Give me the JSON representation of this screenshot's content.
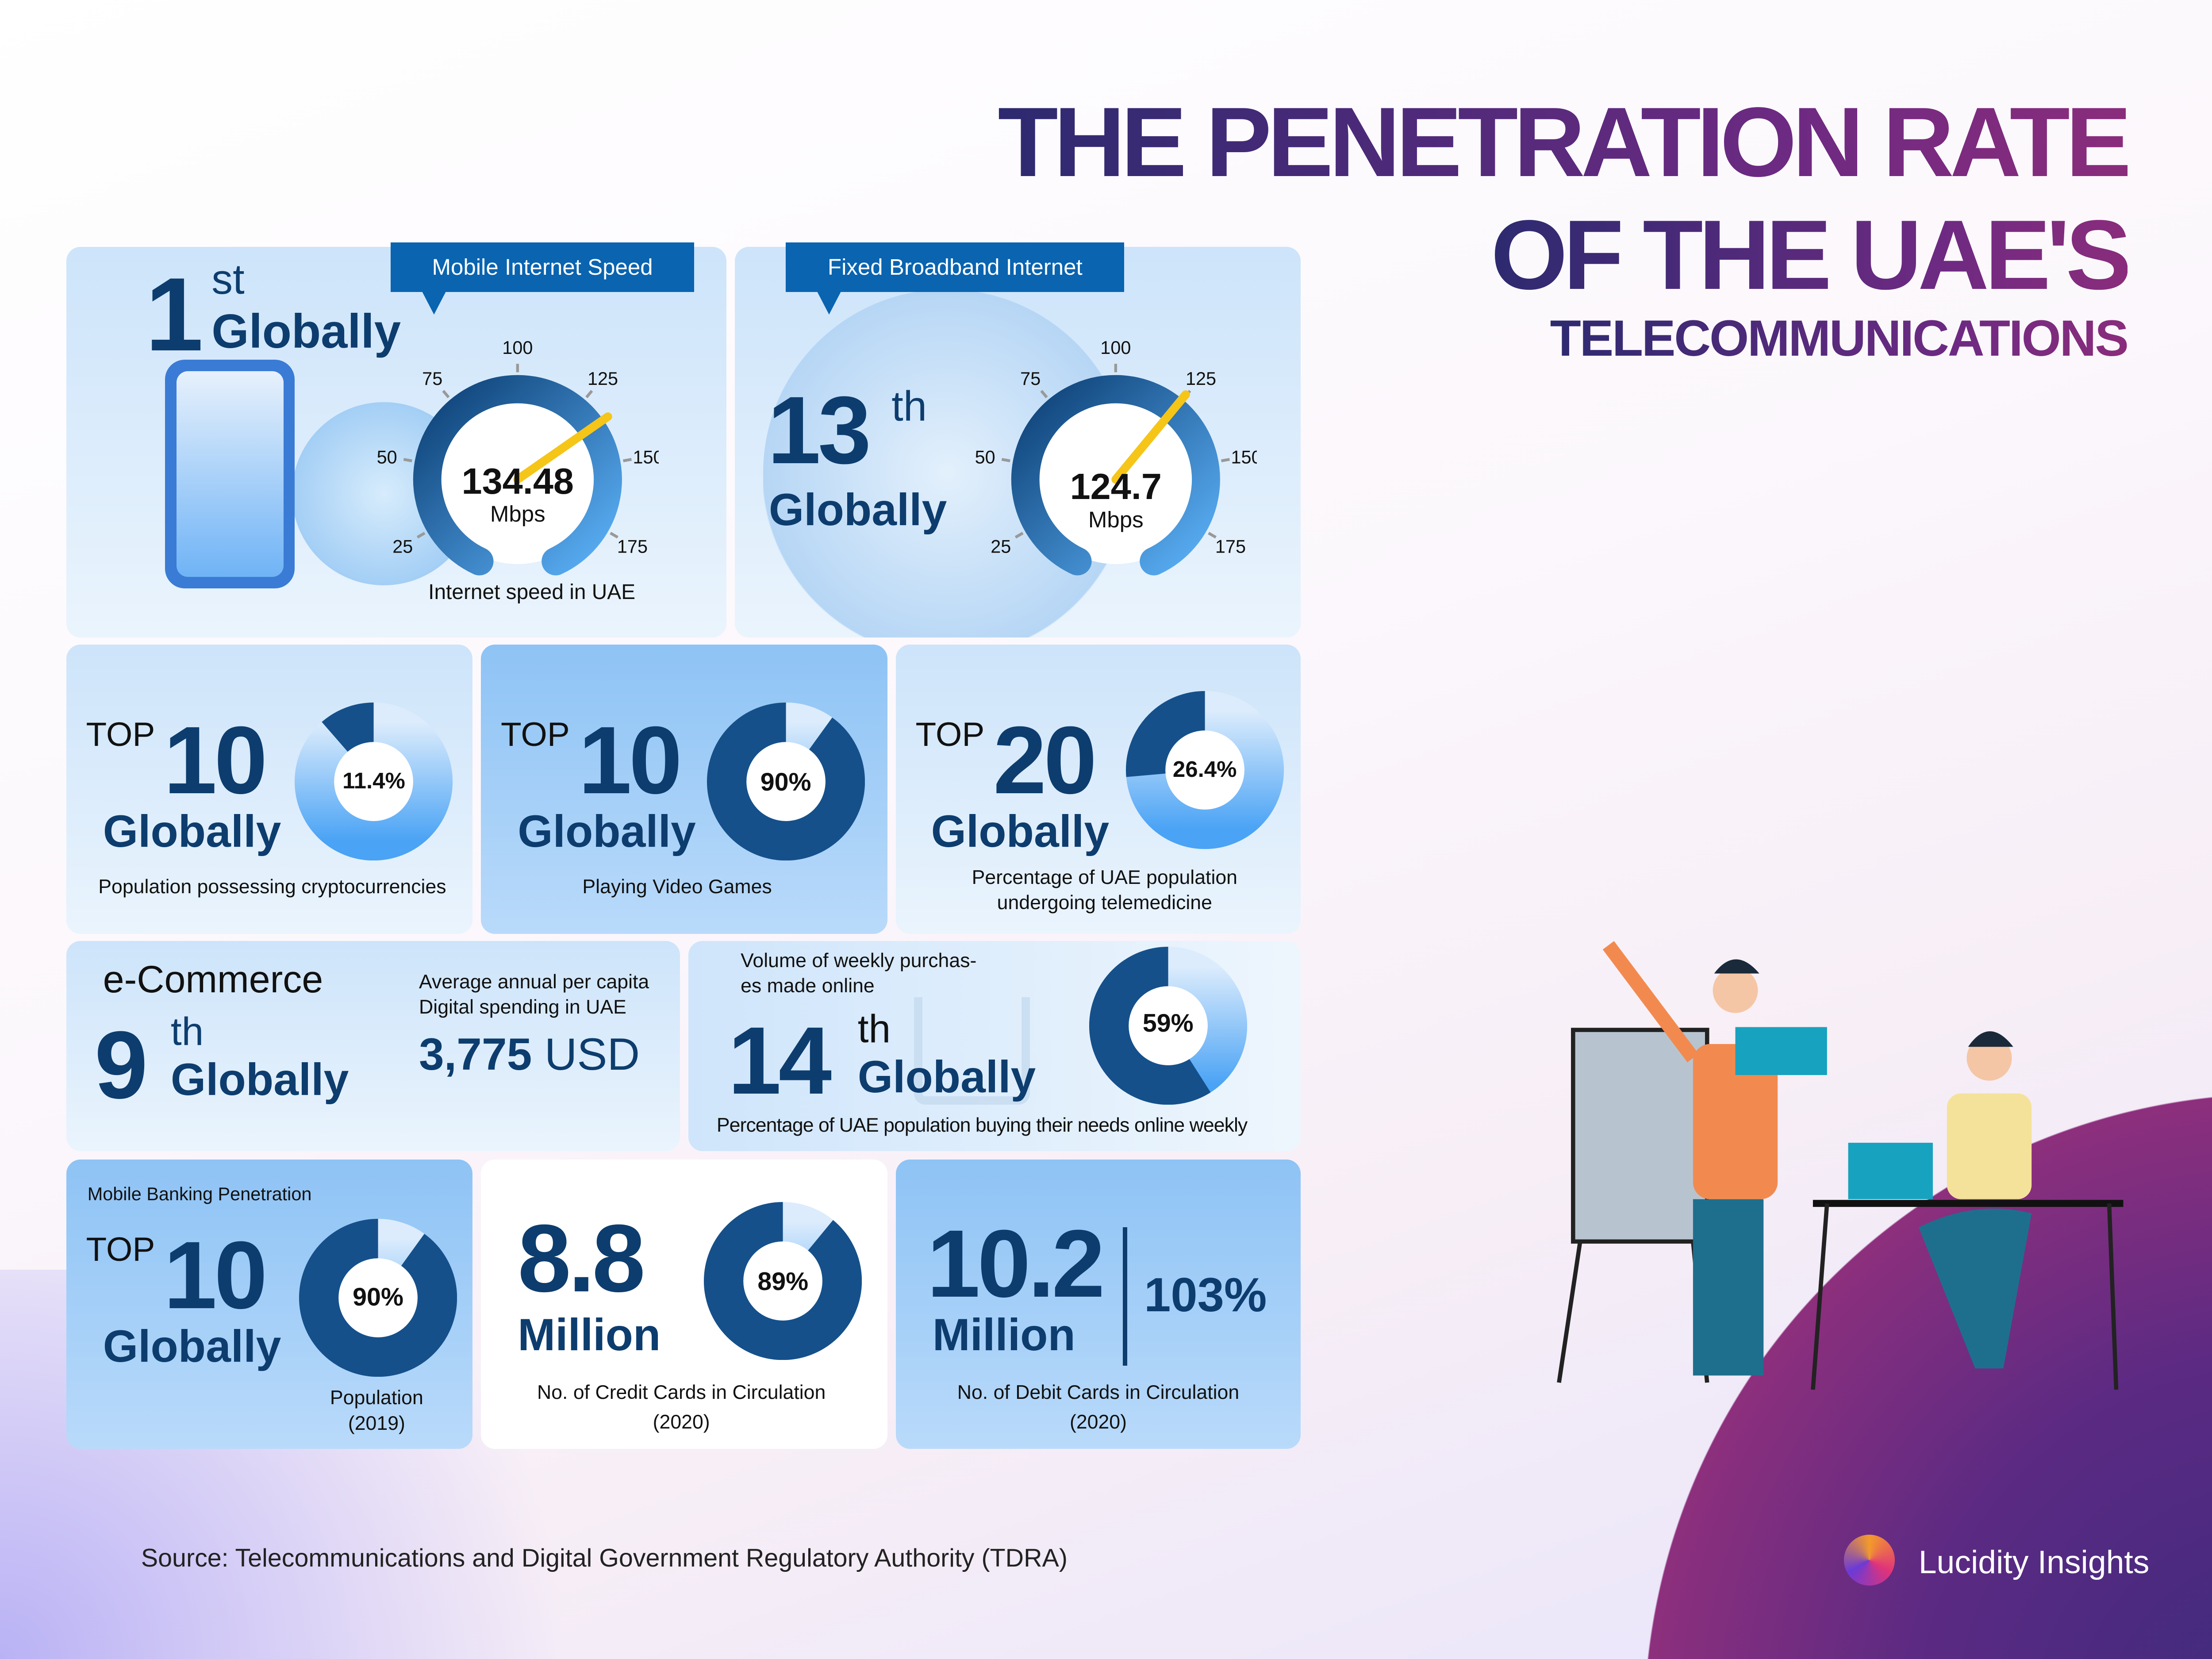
{
  "title": {
    "line1": "THE PENETRATION RATE",
    "line2": "OF THE UAE'S",
    "line3": "TELECOMMUNICATIONS"
  },
  "mobile_speed": {
    "tab": "Mobile Internet Speed",
    "rank": "1",
    "rank_suffix": "st",
    "globally": "Globally",
    "value": 134.48,
    "value_label": "134.48",
    "unit": "Mbps",
    "caption": "Internet speed in UAE",
    "ticks": [
      "25",
      "50",
      "75",
      "100",
      "125",
      "150",
      "175"
    ]
  },
  "broadband": {
    "tab": "Fixed Broadband Internet",
    "rank": "13",
    "rank_suffix": "th",
    "globally": "Globally",
    "value": 124.7,
    "value_label": "124.7",
    "unit": "Mbps",
    "ticks": [
      "25",
      "50",
      "75",
      "100",
      "125",
      "150",
      "175"
    ]
  },
  "crypto": {
    "top": "TOP",
    "rank": "10",
    "globally": "Globally",
    "percent": 11.4,
    "percent_label": "11.4%",
    "caption": "Population possessing cryptocurrencies"
  },
  "gaming": {
    "top": "TOP",
    "rank": "10",
    "globally": "Globally",
    "percent": 90,
    "percent_label": "90%",
    "caption": "Playing Video Games"
  },
  "telemedicine": {
    "top": "TOP",
    "rank": "20",
    "globally": "Globally",
    "percent": 26.4,
    "percent_label": "26.4%",
    "caption_line1": "Percentage of UAE population",
    "caption_line2": "undergoing telemedicine"
  },
  "ecommerce": {
    "label": "e-Commerce",
    "rank": "9",
    "rank_suffix": "th",
    "globally": "Globally",
    "spend_label_line1": "Average annual per capita",
    "spend_label_line2": "Digital spending in UAE",
    "spend_value": "3,775",
    "spend_unit": "USD"
  },
  "weekly": {
    "label_line1": "Volume of weekly purchas-",
    "label_line2": "es made online",
    "rank": "14",
    "rank_suffix": "th",
    "globally": "Globally",
    "percent": 59,
    "percent_label": "59%",
    "caption": "Percentage of UAE population buying their needs online weekly"
  },
  "banking": {
    "label": "Mobile Banking Penetration",
    "top": "TOP",
    "rank": "10",
    "globally": "Globally",
    "percent": 90,
    "percent_label": "90%",
    "caption_line1": "Population",
    "caption_line2": "(2019)"
  },
  "credit": {
    "value": "8.8",
    "unit": "Million",
    "percent": 89,
    "percent_label": "89%",
    "caption_line1": "No. of Credit Cards in Circulation",
    "caption_line2": "(2020)"
  },
  "debit": {
    "value": "10.2",
    "unit": "Million",
    "percent_label": "103%",
    "caption_line1": "No. of Debit Cards in Circulation",
    "caption_line2": "(2020)"
  },
  "source": "Source: Telecommunications and Digital Government Regulatory Authority (TDRA)",
  "brand": "Lucidity Insights",
  "colors": {
    "navy": "#0d3d6e",
    "tab_blue": "#0a64b0",
    "needle": "#f5c518",
    "title_start": "#2d2a70",
    "title_end": "#8a2c7c"
  }
}
